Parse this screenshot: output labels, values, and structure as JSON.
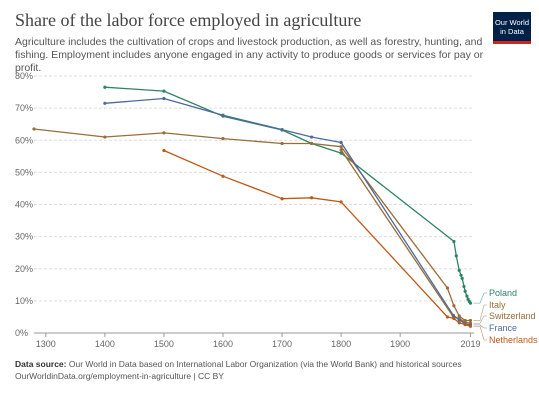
{
  "header": {
    "title": "Share of the labor force employed in agriculture",
    "subtitle": "Agriculture includes the cultivation of crops and livestock production, as well as forestry, hunting, and fishing. Employment includes anyone engaged in any activity to produce goods or services for pay or profit.",
    "logo_line1": "Our World",
    "logo_line2": "in Data"
  },
  "footer": {
    "source_label": "Data source:",
    "source_text": "Our World in Data based on International Labor Organization (via the World Bank) and historical sources",
    "url_text": "OurWorldinData.org/employment-in-agriculture | CC BY"
  },
  "colors": {
    "Poland": "#2c8465",
    "Italy": "#996d39",
    "Switzerland": "#996d39",
    "France": "#4c6a9c",
    "Netherlands": "#be5915",
    "grid": "#dddddd",
    "axis": "#666666"
  },
  "chart_data": {
    "type": "line",
    "title": "Share of the labor force employed in agriculture",
    "xlim": [
      1280,
      2025
    ],
    "ylim": [
      0,
      80
    ],
    "x_ticks": [
      1300,
      1400,
      1500,
      1600,
      1700,
      1800,
      1900,
      2019
    ],
    "x_tick_labels": [
      "1300",
      "1400",
      "1500",
      "1600",
      "1700",
      "1800",
      "1900",
      "2019"
    ],
    "y_ticks": [
      0,
      10,
      20,
      30,
      40,
      50,
      60,
      70,
      80
    ],
    "y_tick_labels": [
      "0%",
      "10%",
      "20%",
      "30%",
      "40%",
      "50%",
      "60%",
      "70%",
      "80%"
    ],
    "grid": "horizontal dashed",
    "legend": "right end labels",
    "series": [
      {
        "name": "Poland",
        "x": [
          1400,
          1500,
          1600,
          1700,
          1750,
          1800,
          1991,
          1995,
          2000,
          2003,
          2005,
          2008,
          2010,
          2013,
          2015,
          2017,
          2019
        ],
        "y": [
          76.5,
          75.3,
          67.5,
          63.2,
          59,
          56,
          28.5,
          24,
          19.5,
          18,
          17,
          14.5,
          13,
          11.5,
          10.5,
          9.8,
          9.3
        ]
      },
      {
        "name": "Italy",
        "x": [
          1280,
          1400,
          1500,
          1600,
          1700,
          1750,
          1800,
          1980,
          1991,
          2000,
          2010,
          2019
        ],
        "y": [
          63.5,
          61,
          62.3,
          60.5,
          59,
          59,
          58,
          14,
          8.5,
          5.3,
          3.9,
          3.9
        ]
      },
      {
        "name": "Switzerland",
        "x": [
          1800,
          1990,
          2000,
          2010,
          2019
        ],
        "y": [
          57,
          5,
          4.5,
          3.4,
          3
        ]
      },
      {
        "name": "France",
        "x": [
          1400,
          1500,
          1600,
          1700,
          1750,
          1800,
          1990,
          2000,
          2010,
          2019
        ],
        "y": [
          71.5,
          73,
          67.8,
          63.3,
          61,
          59.3,
          5.5,
          4.1,
          2.9,
          2.5
        ]
      },
      {
        "name": "Netherlands",
        "x": [
          1500,
          1600,
          1700,
          1750,
          1800,
          1980,
          1991,
          2000,
          2010,
          2019
        ],
        "y": [
          56.8,
          48.8,
          41.8,
          42.1,
          40.8,
          5,
          4.5,
          3.2,
          2.6,
          2.1
        ]
      }
    ]
  }
}
